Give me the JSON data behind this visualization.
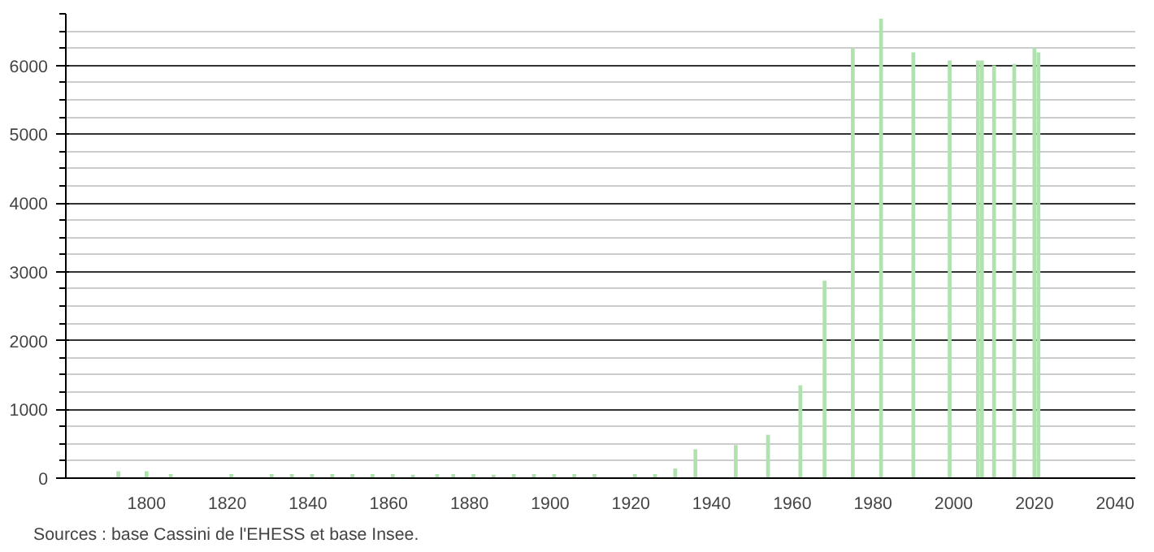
{
  "chart_data": {
    "type": "bar",
    "x": [
      1793,
      1800,
      1806,
      1821,
      1831,
      1836,
      1841,
      1846,
      1851,
      1856,
      1861,
      1866,
      1872,
      1876,
      1881,
      1886,
      1891,
      1896,
      1901,
      1906,
      1911,
      1921,
      1926,
      1931,
      1936,
      1946,
      1954,
      1962,
      1968,
      1975,
      1982,
      1990,
      1999,
      2006,
      2007,
      2010,
      2015,
      2020,
      2021
    ],
    "values": [
      100,
      100,
      60,
      60,
      60,
      60,
      60,
      60,
      60,
      60,
      60,
      50,
      60,
      60,
      60,
      50,
      60,
      60,
      60,
      60,
      60,
      60,
      60,
      140,
      420,
      480,
      630,
      1350,
      2870,
      6250,
      6680,
      6190,
      6070,
      6070,
      6070,
      6000,
      6020,
      6250,
      6190
    ],
    "color": "#b0e2b0",
    "xlim": [
      1780,
      2045
    ],
    "ylim": [
      0,
      6750
    ],
    "xticks": [
      1800,
      1820,
      1840,
      1860,
      1880,
      1900,
      1920,
      1940,
      1960,
      1980,
      2000,
      2020,
      2040
    ],
    "yticks": [
      0,
      1000,
      2000,
      3000,
      4000,
      5000,
      6000
    ],
    "grid": "y",
    "annotations": [
      "Sources : base Cassini de l'EHESS et base Insee."
    ]
  }
}
